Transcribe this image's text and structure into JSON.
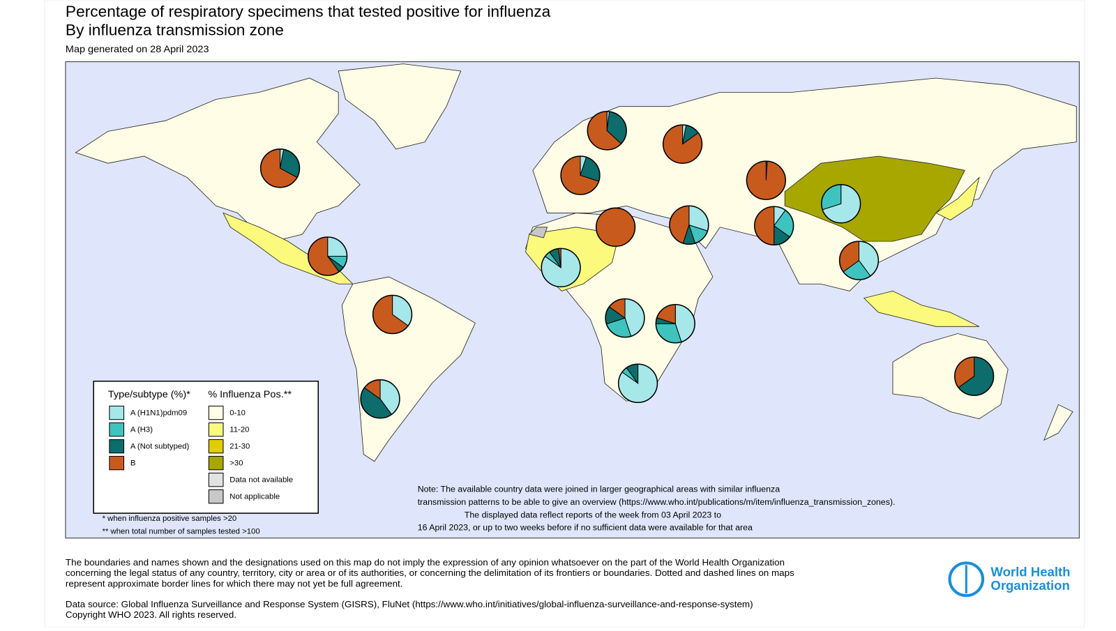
{
  "header": {
    "title": "Percentage of respiratory specimens that tested positive for influenza",
    "subtitle": "By influenza transmission zone",
    "generated": "Map generated on 28 April 2023"
  },
  "legend": {
    "type_title": "Type/subtype (%)*",
    "type_items": [
      {
        "label": "A (H1N1)pdm09",
        "color": "#a6e7ea"
      },
      {
        "label": "A (H3)",
        "color": "#3fc3bf"
      },
      {
        "label": "A (Not subtyped)",
        "color": "#0c6d6c"
      },
      {
        "label": "B",
        "color": "#c95a1e"
      }
    ],
    "pos_title": "% Influenza Pos.**",
    "pos_items": [
      {
        "label": "0-10",
        "color": "#fffde5"
      },
      {
        "label": "11-20",
        "color": "#fcfa7c"
      },
      {
        "label": "21-30",
        "color": "#e1cd00"
      },
      {
        "label": ">30",
        "color": "#a7a700"
      },
      {
        "label": "Data not available",
        "color": "#e2e2e2"
      },
      {
        "label": "Not applicable",
        "color": "#c8c8c8"
      }
    ]
  },
  "footnotes": [
    "* when influenza positive samples >20",
    "** when total number of samples tested >100"
  ],
  "note": [
    "Note: The available country data were joined in larger geographical areas with similar influenza",
    "transmission patterns to be able to give an overview (https://www.who.int/publications/m/item/influenza_transmission_zones).",
    "The displayed data reflect reports of the week from 03 April 2023 to",
    "16 April 2023, or up to two weeks before if no sufficient data were available for that area"
  ],
  "disclaimer": [
    "The boundaries and names shown and the designations used on this map do not imply the expression of any opinion whatsoever on the part of the World Health Organization",
    "concerning the legal status of any country, territory, city or area or of its authorities, or concerning the delimitation of its frontiers or boundaries. Dotted and dashed lines on maps",
    "represent approximate border lines for which there may not yet be full agreement."
  ],
  "data_source": [
    "Data source: Global Influenza Surveillance and Response System (GISRS), FluNet (https://www.who.int/initiatives/global-influenza-surveillance-and-response-system)",
    "Copyright WHO 2023. All rights reserved."
  ],
  "logo": [
    "World Health",
    "Organization"
  ],
  "zones": [
    [
      3,
      0,
      30,
      67
    ],
    [
      25,
      10,
      5,
      60
    ],
    [
      35,
      0,
      0,
      65
    ],
    [
      40,
      0,
      45,
      15
    ],
    [
      2,
      0,
      35,
      63
    ],
    [
      3,
      0,
      12,
      85
    ],
    [
      5,
      0,
      25,
      70
    ],
    [
      0,
      0,
      0,
      100
    ],
    [
      30,
      15,
      10,
      45
    ],
    [
      0,
      0,
      1,
      99
    ],
    [
      10,
      25,
      15,
      50
    ],
    [
      70,
      30,
      0,
      0
    ],
    [
      40,
      25,
      0,
      35
    ],
    [
      85,
      5,
      8,
      2
    ],
    [
      45,
      25,
      15,
      15
    ],
    [
      45,
      30,
      5,
      20
    ],
    [
      85,
      5,
      10,
      0
    ],
    [
      0,
      0,
      65,
      35
    ]
  ]
}
